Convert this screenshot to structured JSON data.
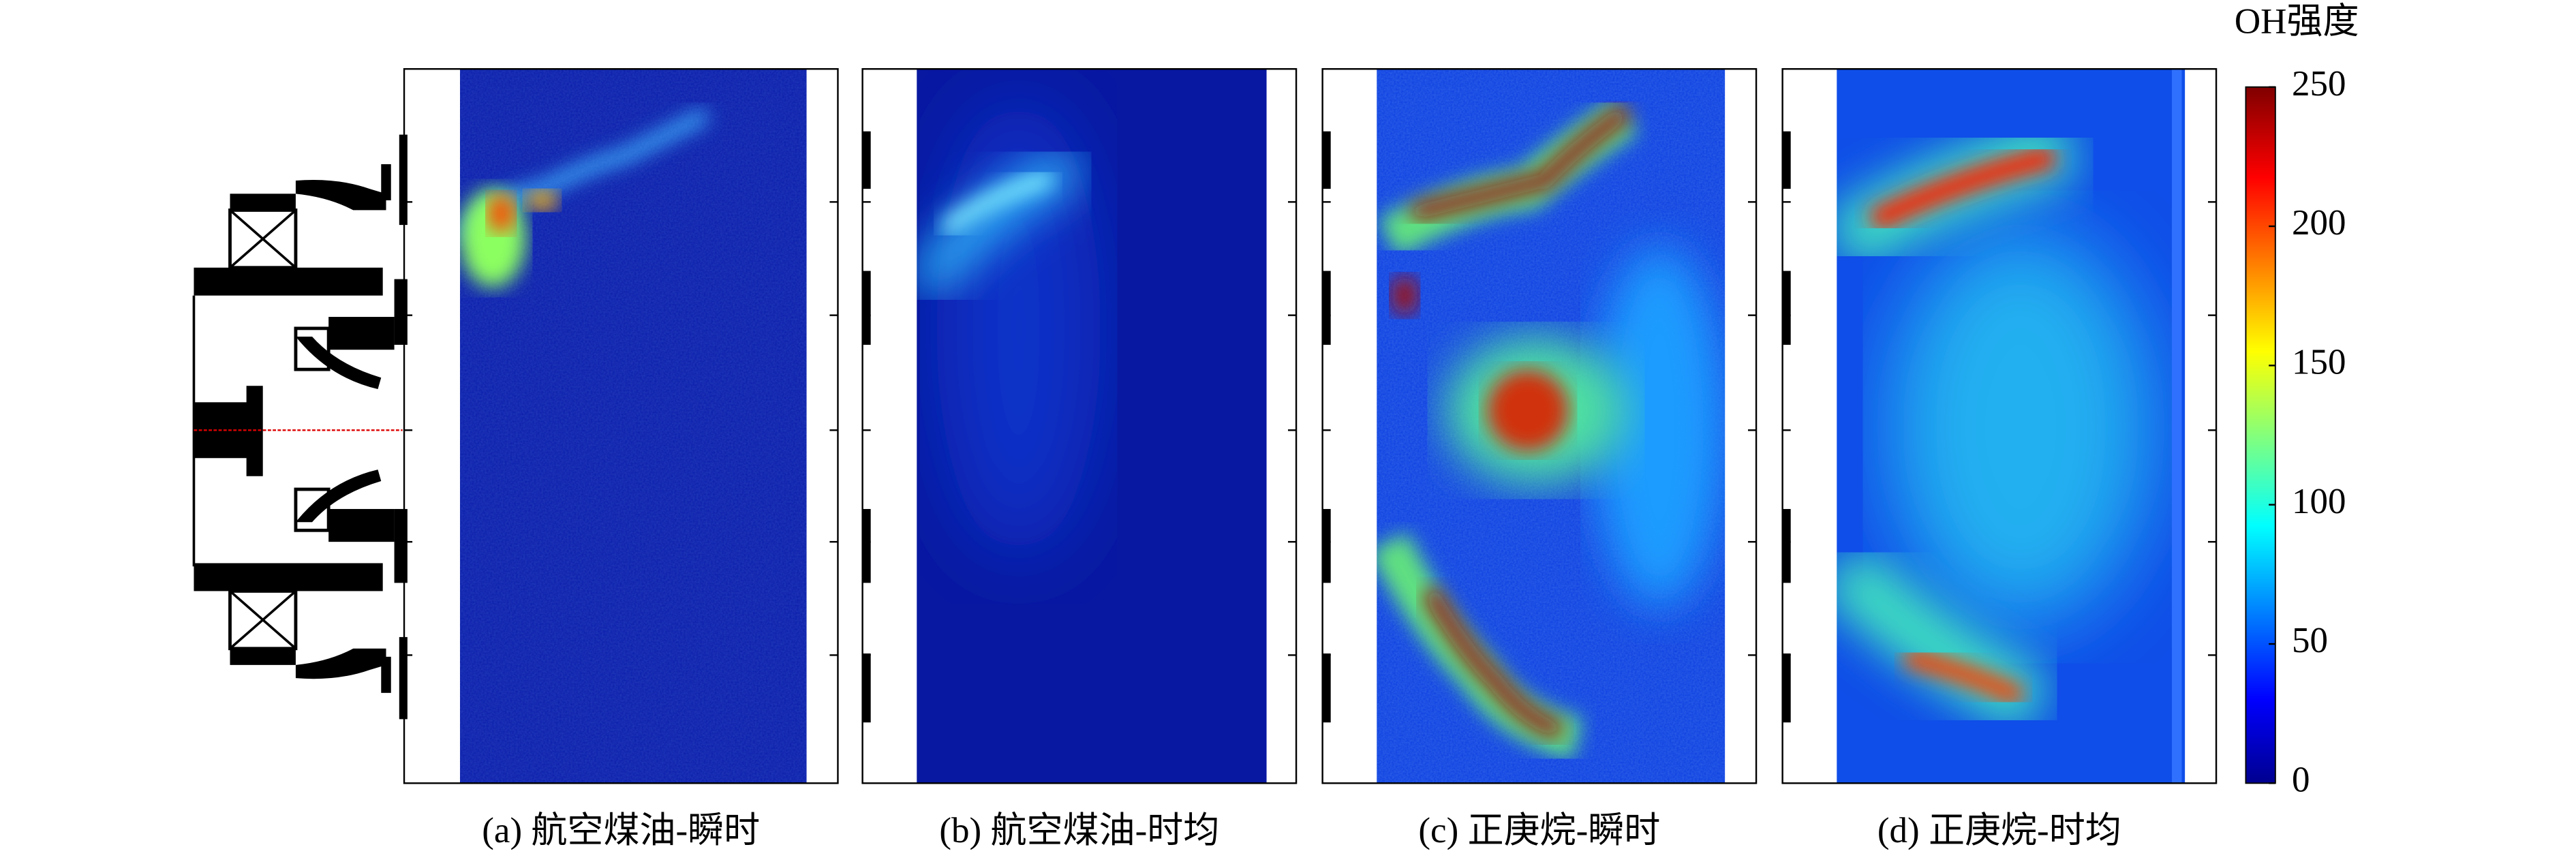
{
  "panels": [
    {
      "caption": "(a) 航空煤油-瞬时"
    },
    {
      "caption": "(b) 航空煤油-时均"
    },
    {
      "caption": "(c) 正庚烷-瞬时"
    },
    {
      "caption": "(d) 正庚烷-时均"
    }
  ],
  "colorbar": {
    "label": "OH强度",
    "lim": [
      0,
      250
    ],
    "ticks": [
      0,
      50,
      100,
      150,
      200,
      250
    ]
  }
}
